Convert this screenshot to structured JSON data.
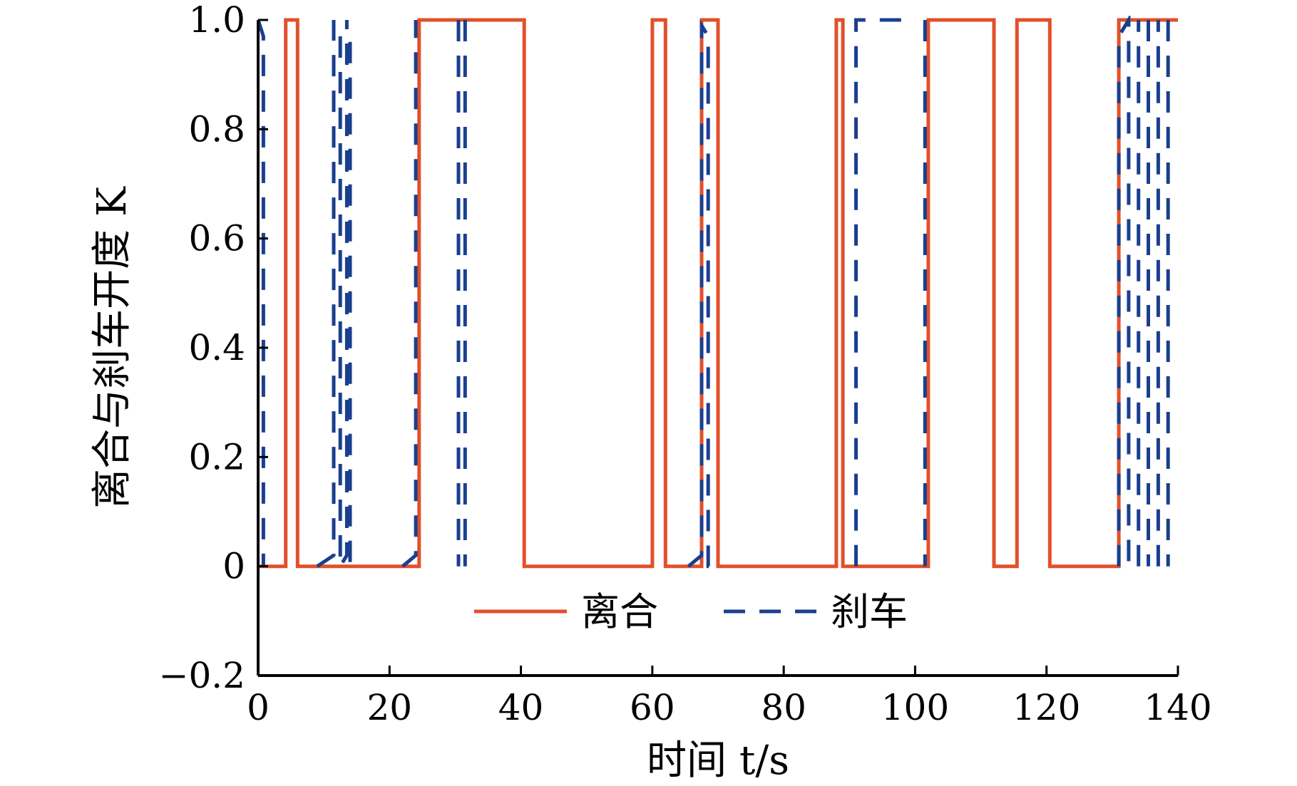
{
  "chart_data": {
    "type": "line",
    "xlabel": "时间 t/s",
    "ylabel": "离合与刹车开度 K",
    "xlim": [
      0,
      140
    ],
    "ylim": [
      -0.2,
      1.0
    ],
    "xticks": [
      0,
      20,
      40,
      60,
      80,
      100,
      120,
      140
    ],
    "yticks": [
      -0.2,
      0,
      0.2,
      0.4,
      0.6,
      0.8,
      1.0
    ],
    "ytick_labels": [
      "−0.2",
      "0",
      "0.2",
      "0.4",
      "0.6",
      "0.8",
      "1.0"
    ],
    "grid": false,
    "legend_position": "bottom-center",
    "series": [
      {
        "name": "离合",
        "color": "#e2502a",
        "style": "solid",
        "points": [
          [
            0,
            0
          ],
          [
            4.2,
            0
          ],
          [
            4.2,
            1
          ],
          [
            6,
            1
          ],
          [
            6,
            0
          ],
          [
            24.5,
            0
          ],
          [
            24.5,
            1
          ],
          [
            40.5,
            1
          ],
          [
            40.5,
            0
          ],
          [
            60,
            0
          ],
          [
            60,
            1
          ],
          [
            62,
            1
          ],
          [
            62,
            0
          ],
          [
            67.5,
            0
          ],
          [
            67.5,
            1
          ],
          [
            70,
            1
          ],
          [
            70,
            0
          ],
          [
            88,
            0
          ],
          [
            88,
            1
          ],
          [
            89,
            1
          ],
          [
            89,
            0
          ],
          [
            102,
            0
          ],
          [
            102,
            1
          ],
          [
            112,
            1
          ],
          [
            112,
            0
          ],
          [
            115.5,
            0
          ],
          [
            115.5,
            1
          ],
          [
            120.5,
            1
          ],
          [
            120.5,
            0
          ],
          [
            131,
            0
          ],
          [
            131,
            1
          ],
          [
            140,
            1
          ]
        ]
      },
      {
        "name": "刹车",
        "color": "#1a3f8f",
        "style": "dashed",
        "segments": [
          [
            [
              0,
              1
            ],
            [
              0.8,
              0.97
            ],
            [
              0.8,
              0
            ]
          ],
          [
            [
              9,
              0
            ],
            [
              11.5,
              0.02
            ],
            [
              11.5,
              1
            ]
          ],
          [
            [
              12.5,
              0.97
            ],
            [
              12.5,
              0
            ],
            [
              13.5,
              0.02
            ],
            [
              13.5,
              1
            ]
          ],
          [
            [
              14,
              0.96
            ],
            [
              14,
              0
            ]
          ],
          [
            [
              22,
              0
            ],
            [
              24,
              0.02
            ],
            [
              24,
              1
            ]
          ],
          [
            [
              30.5,
              1
            ],
            [
              30.5,
              0
            ]
          ],
          [
            [
              31.5,
              1
            ],
            [
              31.5,
              0
            ]
          ],
          [
            [
              65.5,
              0
            ],
            [
              67.5,
              0.02
            ],
            [
              67.5,
              0.99
            ],
            [
              68.5,
              0.97
            ],
            [
              68.5,
              0
            ],
            [
              70,
              0
            ]
          ],
          [
            [
              91,
              0
            ],
            [
              91,
              1
            ],
            [
              99.5,
              1
            ]
          ],
          [
            [
              101.5,
              1
            ],
            [
              101.5,
              0
            ]
          ],
          [
            [
              131,
              0
            ],
            [
              131,
              0.97
            ],
            [
              132.5,
              1
            ],
            [
              132.5,
              0
            ]
          ],
          [
            [
              134,
              0
            ],
            [
              134,
              1
            ]
          ],
          [
            [
              135.5,
              1
            ],
            [
              135.5,
              0
            ]
          ],
          [
            [
              137,
              0
            ],
            [
              137,
              1
            ]
          ],
          [
            [
              138.5,
              1
            ],
            [
              138.5,
              0
            ]
          ]
        ]
      }
    ]
  }
}
